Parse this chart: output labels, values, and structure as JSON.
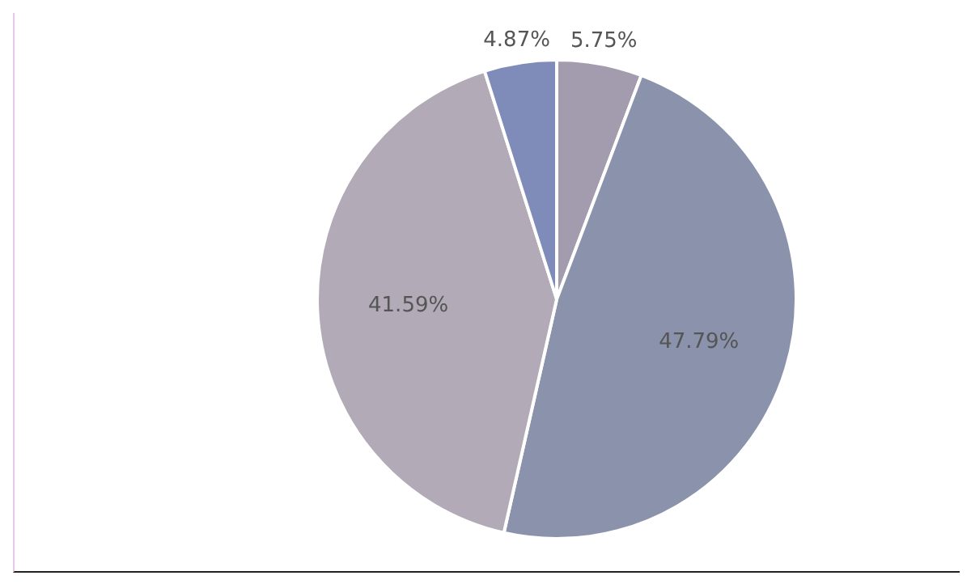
{
  "chart_data": {
    "type": "pie",
    "categories": [
      null,
      null,
      null,
      null
    ],
    "values": [
      5.75,
      47.79,
      41.59,
      4.87
    ],
    "colors": [
      "#a39cae",
      "#8a93ab",
      "#b2aab6",
      "#7f8bb8"
    ],
    "value_labels": [
      "5.75%",
      "47.79%",
      "41.59%",
      "4.87%"
    ],
    "legend": false
  }
}
